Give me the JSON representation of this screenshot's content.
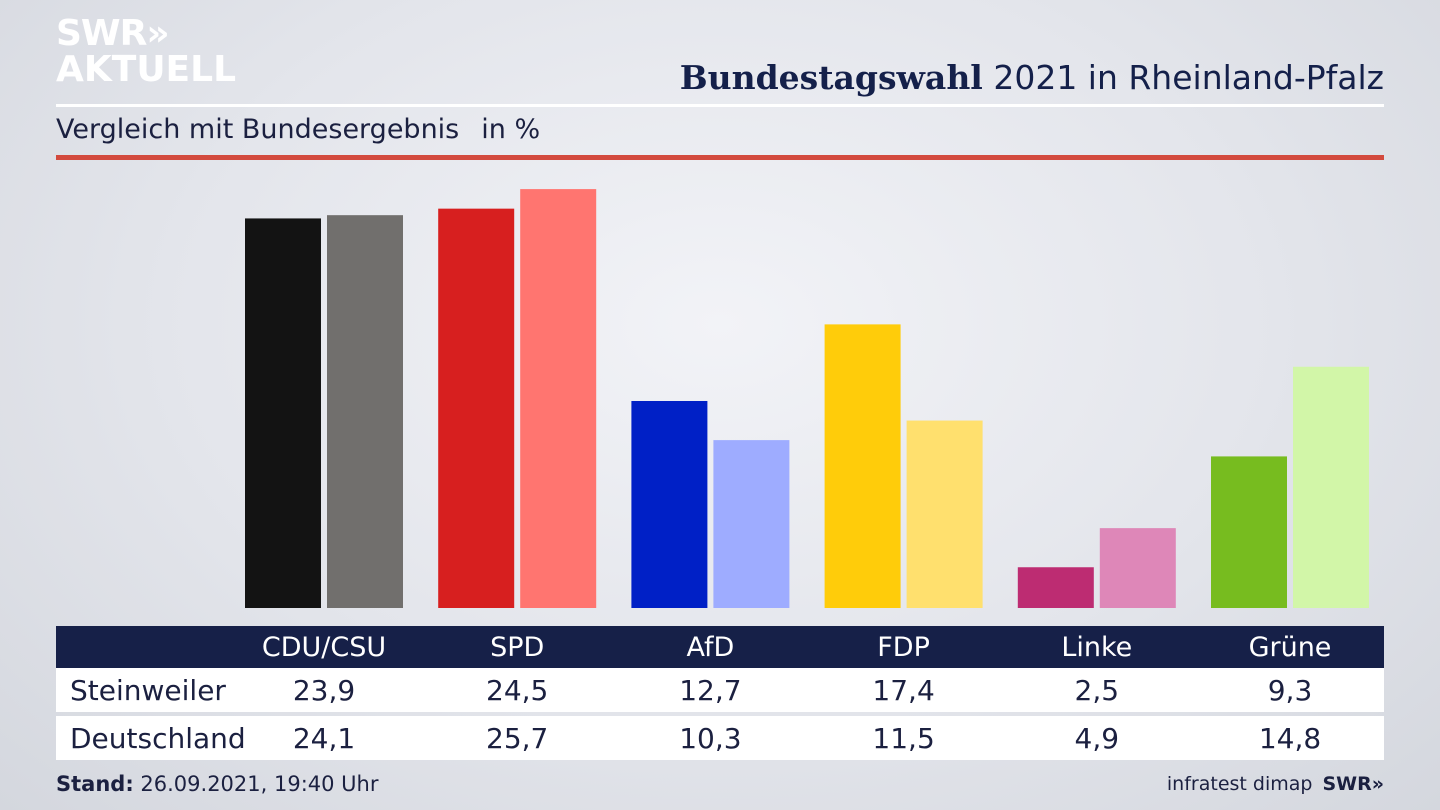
{
  "logo": {
    "line1": "SWR»",
    "line2": "AKTUELL"
  },
  "header": {
    "title_bold": "Bundestagswahl",
    "title_rest": " 2021 in Rheinland-Pfalz",
    "subtitle": "Vergleich mit Bundesergebnis",
    "unit": "in %"
  },
  "chart_data": {
    "type": "bar",
    "categories": [
      "CDU/CSU",
      "SPD",
      "AfD",
      "FDP",
      "Linke",
      "Grüne"
    ],
    "series": [
      {
        "name": "Steinweiler",
        "values": [
          23.9,
          24.5,
          12.7,
          17.4,
          2.5,
          9.3
        ]
      },
      {
        "name": "Deutschland",
        "values": [
          24.1,
          25.7,
          10.3,
          11.5,
          4.9,
          14.8
        ]
      }
    ],
    "colors": {
      "Steinweiler": [
        "#131313",
        "#d71f1f",
        "#0020c6",
        "#ffcc0a",
        "#bd2c72",
        "#77bc1f"
      ],
      "Deutschland": [
        "#716f6d",
        "#ff7570",
        "#9eacff",
        "#ffe06e",
        "#de87b8",
        "#d2f6a8"
      ]
    },
    "title": "Bundestagswahl 2021 in Rheinland-Pfalz"
  },
  "table": {
    "rows": [
      {
        "label": "Steinweiler",
        "values": [
          "23,9",
          "24,5",
          "12,7",
          "17,4",
          "2,5",
          "9,3"
        ]
      },
      {
        "label": "Deutschland",
        "values": [
          "24,1",
          "25,7",
          "10,3",
          "11,5",
          "4,9",
          "14,8"
        ]
      }
    ]
  },
  "footer": {
    "stand_label": "Stand:",
    "stand_value": " 26.09.2021, 19:40 Uhr",
    "source": "infratest dimap",
    "brand": "SWR»"
  }
}
